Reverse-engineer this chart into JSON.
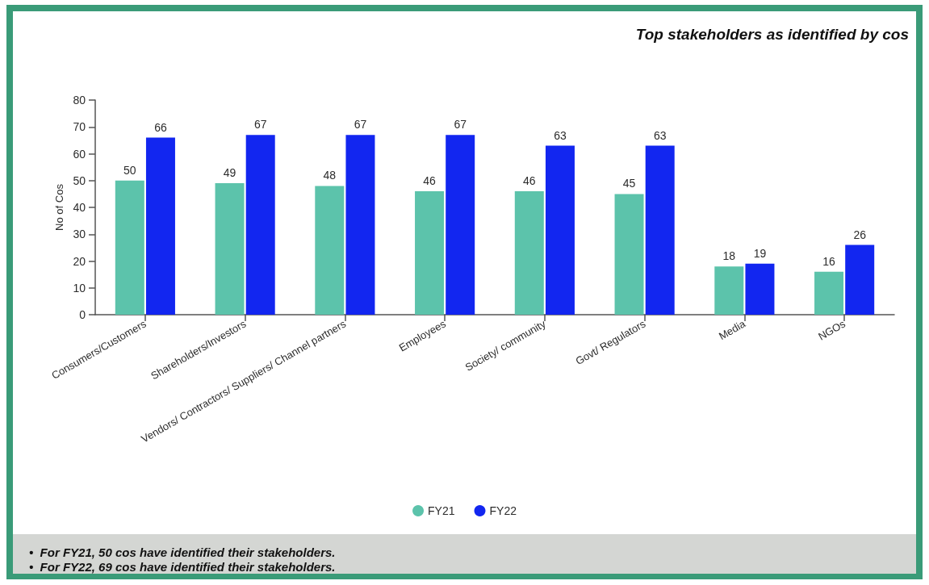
{
  "chart_data": {
    "type": "bar",
    "title": "Top stakeholders as identified by cos",
    "ylabel": "No of Cos",
    "categories": [
      "Consumers/Customers",
      "Shareholders/Investors",
      "Vendors/ Contractors/ Suppliers/ Channel partners",
      "Employees",
      "Society/ community",
      "Govt/ Regulators",
      "Media",
      "NGOs"
    ],
    "series": [
      {
        "name": "FY21",
        "color": "#5cc3ab",
        "values": [
          50,
          49,
          48,
          46,
          46,
          45,
          18,
          16
        ]
      },
      {
        "name": "FY22",
        "color": "#1226f0",
        "values": [
          66,
          67,
          67,
          67,
          63,
          63,
          19,
          26
        ]
      }
    ],
    "ylim": [
      0,
      80
    ],
    "yticks": [
      0,
      10,
      20,
      30,
      40,
      50,
      60,
      70,
      80
    ],
    "grid": false,
    "legend": "bottom",
    "data_labels": true,
    "annotations": [
      "•  For FY21, 50 cos have identified their stakeholders.",
      "•  For FY22, 69 cos have identified their stakeholders."
    ]
  }
}
